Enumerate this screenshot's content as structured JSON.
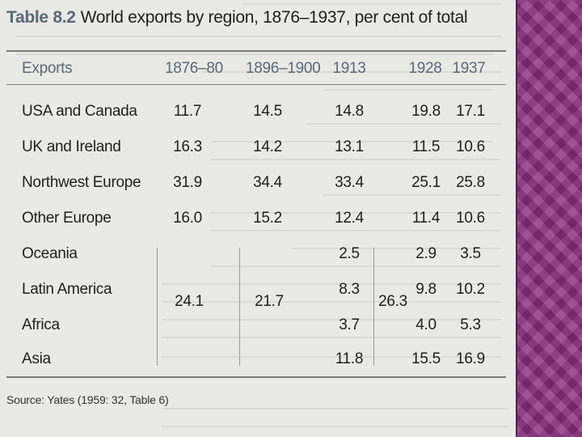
{
  "table": {
    "number": "Table 8.2",
    "title": "World exports by region, 1876–1937, per cent of total",
    "headers": [
      "Exports",
      "1876–80",
      "1896–1900",
      "1913",
      "1928",
      "1937"
    ],
    "rows": [
      {
        "region": "USA and Canada",
        "values": [
          "11.7",
          "14.5",
          "14.8",
          "19.8",
          "17.1"
        ]
      },
      {
        "region": "UK and Ireland",
        "values": [
          "16.3",
          "14.2",
          "13.1",
          "11.5",
          "10.6"
        ]
      },
      {
        "region": "Northwest Europe",
        "values": [
          "31.9",
          "34.4",
          "33.4",
          "25.1",
          "25.8"
        ]
      },
      {
        "region": "Other Europe",
        "values": [
          "16.0",
          "15.2",
          "12.4",
          "11.4",
          "10.6"
        ]
      },
      {
        "region": "Oceania",
        "values": [
          "",
          "",
          "2.5",
          "2.9",
          "3.5"
        ]
      },
      {
        "region": "Latin America",
        "values": [
          "",
          "",
          "8.3",
          "9.8",
          "10.2"
        ]
      },
      {
        "region": "Africa",
        "values": [
          "",
          "",
          "3.7",
          "4.0",
          "5.3"
        ]
      },
      {
        "region": "Asia",
        "values": [
          "",
          "",
          "11.8",
          "15.5",
          "16.9"
        ]
      }
    ],
    "combined": {
      "col_1876": "24.1",
      "col_1896": "21.7",
      "col_1913": "26.3"
    },
    "source": "Source: Yates (1959: 32, Table 6)"
  },
  "colors": {
    "slide_side": "#8b2f7f",
    "header_text": "#5a6a74"
  }
}
